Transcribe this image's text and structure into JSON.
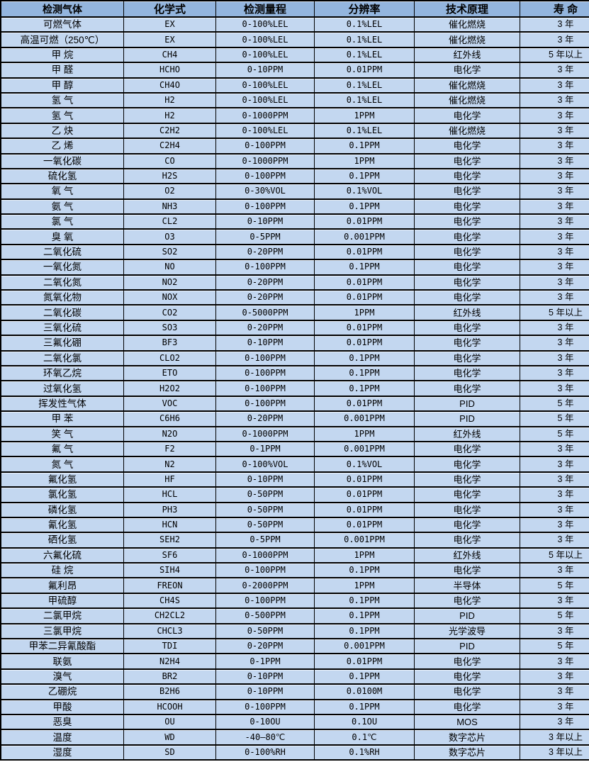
{
  "colors": {
    "header_bg": "#93b5de",
    "row_bg": "#c3d7f0",
    "border": "#000000",
    "text": "#000000"
  },
  "table": {
    "columns": [
      {
        "key": "gas-name",
        "label": "检测气体"
      },
      {
        "key": "chemical-formula",
        "label": "化学式"
      },
      {
        "key": "detection-range",
        "label": "检测量程"
      },
      {
        "key": "resolution",
        "label": "分辨率"
      },
      {
        "key": "technology",
        "label": "技术原理"
      },
      {
        "key": "lifespan",
        "label": "寿 命"
      }
    ],
    "rows": [
      [
        "可燃气体",
        "EX",
        "0-100%LEL",
        "0.1%LEL",
        "催化燃烧",
        "3 年"
      ],
      [
        "高温可燃（250℃）",
        "EX",
        "0-100%LEL",
        "0.1%LEL",
        "催化燃烧",
        "3 年"
      ],
      [
        "甲 烷",
        "CH4",
        "0-100%LEL",
        "0.1%LEL",
        "红外线",
        "5 年以上"
      ],
      [
        "甲 醛",
        "HCHO",
        "0-10PPM",
        "0.01PPM",
        "电化学",
        "3 年"
      ],
      [
        "甲 醇",
        "CH4O",
        "0-100%LEL",
        "0.1%LEL",
        "催化燃烧",
        "3 年"
      ],
      [
        "氢 气",
        "H2",
        "0-100%LEL",
        "0.1%LEL",
        "催化燃烧",
        "3 年"
      ],
      [
        "氢 气",
        "H2",
        "0-1000PPM",
        "1PPM",
        "电化学",
        "3 年"
      ],
      [
        "乙 炔",
        "C2H2",
        "0-100%LEL",
        "0.1%LEL",
        "催化燃烧",
        "3 年"
      ],
      [
        "乙 烯",
        "C2H4",
        "0-100PPM",
        "0.1PPM",
        "电化学",
        "3 年"
      ],
      [
        "一氧化碳",
        "CO",
        "0-1000PPM",
        "1PPM",
        "电化学",
        "3 年"
      ],
      [
        "硫化氢",
        "H2S",
        "0-100PPM",
        "0.1PPM",
        "电化学",
        "3 年"
      ],
      [
        "氧 气",
        "O2",
        "0-30%VOL",
        "0.1%VOL",
        "电化学",
        "3 年"
      ],
      [
        "氨 气",
        "NH3",
        "0-100PPM",
        "0.1PPM",
        "电化学",
        "3 年"
      ],
      [
        "氯 气",
        "CL2",
        "0-10PPM",
        "0.01PPM",
        "电化学",
        "3 年"
      ],
      [
        "臭 氧",
        "O3",
        "0-5PPM",
        "0.001PPM",
        "电化学",
        "3 年"
      ],
      [
        "二氧化硫",
        "SO2",
        "0-20PPM",
        "0.01PPM",
        "电化学",
        "3 年"
      ],
      [
        "一氧化氮",
        "NO",
        "0-100PPM",
        "0.1PPM",
        "电化学",
        "3 年"
      ],
      [
        "二氧化氮",
        "NO2",
        "0-20PPM",
        "0.01PPM",
        "电化学",
        "3 年"
      ],
      [
        "氮氧化物",
        "NOX",
        "0-20PPM",
        "0.01PPM",
        "电化学",
        "3 年"
      ],
      [
        "二氧化碳",
        "CO2",
        "0-5000PPM",
        "1PPM",
        "红外线",
        "5 年以上"
      ],
      [
        "三氧化硫",
        "SO3",
        "0-20PPM",
        "0.01PPM",
        "电化学",
        "3 年"
      ],
      [
        "三氟化硼",
        "BF3",
        "0-10PPM",
        "0.01PPM",
        "电化学",
        "3 年"
      ],
      [
        "二氧化氯",
        "CLO2",
        "0-100PPM",
        "0.1PPM",
        "电化学",
        "3 年"
      ],
      [
        "环氧乙烷",
        "ETO",
        "0-100PPM",
        "0.1PPM",
        "电化学",
        "3 年"
      ],
      [
        "过氧化氢",
        "H2O2",
        "0-100PPM",
        "0.1PPM",
        "电化学",
        "3 年"
      ],
      [
        "挥发性气体",
        "VOC",
        "0-100PPM",
        "0.01PPM",
        "PID",
        "5 年"
      ],
      [
        "甲 苯",
        "C6H6",
        "0-20PPM",
        "0.001PPM",
        "PID",
        "5 年"
      ],
      [
        "笑 气",
        "N2O",
        "0-1000PPM",
        "1PPM",
        "红外线",
        "5 年"
      ],
      [
        "氟 气",
        "F2",
        "0-1PPM",
        "0.001PPM",
        "电化学",
        "3 年"
      ],
      [
        "氮 气",
        "N2",
        "0-100%VOL",
        "0.1%VOL",
        "电化学",
        "3 年"
      ],
      [
        "氟化氢",
        "HF",
        "0-10PPM",
        "0.01PPM",
        "电化学",
        "3 年"
      ],
      [
        "氯化氢",
        "HCL",
        "0-50PPM",
        "0.01PPM",
        "电化学",
        "3 年"
      ],
      [
        "磷化氢",
        "PH3",
        "0-50PPM",
        "0.01PPM",
        "电化学",
        "3 年"
      ],
      [
        "氰化氢",
        "HCN",
        "0-50PPM",
        "0.01PPM",
        "电化学",
        "3 年"
      ],
      [
        "硒化氢",
        "SEH2",
        "0-5PPM",
        "0.001PPM",
        "电化学",
        "3 年"
      ],
      [
        "六氟化硫",
        "SF6",
        "0-1000PPM",
        "1PPM",
        "红外线",
        "5 年以上"
      ],
      [
        "硅 烷",
        "SIH4",
        "0-100PPM",
        "0.1PPM",
        "电化学",
        "3 年"
      ],
      [
        "氟利昂",
        "FREON",
        "0-2000PPM",
        "1PPM",
        "半导体",
        "5 年"
      ],
      [
        "甲硫醇",
        "CH4S",
        "0-100PPM",
        "0.1PPM",
        "电化学",
        "3 年"
      ],
      [
        "二氯甲烷",
        "CH2CL2",
        "0-500PPM",
        "0.1PPM",
        "PID",
        "5 年"
      ],
      [
        "三氯甲烷",
        "CHCL3",
        "0-50PPM",
        "0.1PPM",
        "光学波导",
        "3 年"
      ],
      [
        "甲苯二异氰酸酯",
        "TDI",
        "0-20PPM",
        "0.001PPM",
        "PID",
        "5 年"
      ],
      [
        "联氨",
        "N2H4",
        "0-1PPM",
        "0.01PPM",
        "电化学",
        "3 年"
      ],
      [
        "溴气",
        "BR2",
        "0-10PPM",
        "0.1PPM",
        "电化学",
        "3 年"
      ],
      [
        "乙硼烷",
        "B2H6",
        "0-10PPM",
        "0.0100M",
        "电化学",
        "3 年"
      ],
      [
        "甲酸",
        "HCOOH",
        "0-100PPM",
        "0.1PPM",
        "电化学",
        "3 年"
      ],
      [
        "恶臭",
        "OU",
        "0-10OU",
        "0.1OU",
        "MOS",
        "3 年"
      ],
      [
        "温度",
        "WD",
        "-40—80℃",
        "0.1℃",
        "数字芯片",
        "3 年以上"
      ],
      [
        "湿度",
        "SD",
        "0-100%RH",
        "0.1%RH",
        "数字芯片",
        "3 年以上"
      ]
    ]
  }
}
